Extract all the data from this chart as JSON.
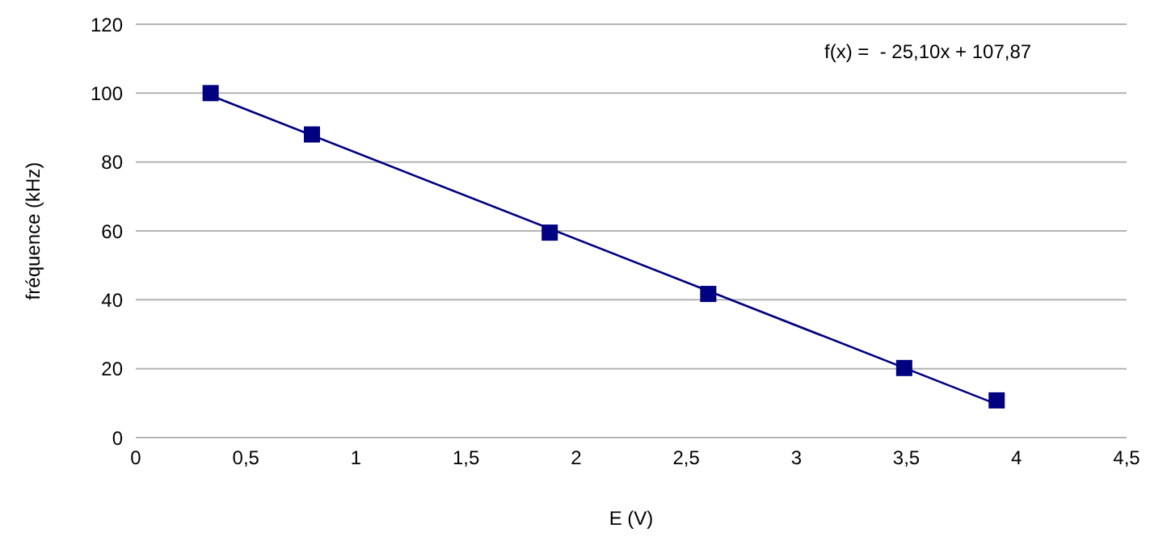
{
  "chart_data": {
    "type": "scatter",
    "xlabel": "E (V)",
    "ylabel": "fréquence (kHz)",
    "annotations": [
      "f(x) =  - 25,10x + 107,87"
    ],
    "xlim": [
      0,
      4.5
    ],
    "xticks": [
      0,
      {
        "value": 0.5,
        "label": "0,5"
      },
      1,
      {
        "value": 1.5,
        "label": "1,5"
      },
      2,
      {
        "value": 2.5,
        "label": "2,5"
      },
      3,
      {
        "value": 3.5,
        "label": "3,5"
      },
      4,
      {
        "value": 4.5,
        "label": "4,5"
      }
    ],
    "ylim": [
      0,
      120
    ],
    "yticks": [
      0,
      20,
      40,
      60,
      80,
      100,
      120
    ],
    "grid": "y",
    "marker": "square",
    "series": [
      {
        "color": "#000080",
        "x": [
          0.34,
          0.8,
          1.88,
          2.6,
          3.49,
          3.91
        ],
        "values": [
          100,
          88,
          59.5,
          41.7,
          20.2,
          10.8
        ]
      },
      {
        "type": "line",
        "marker": "none",
        "color": "#000080",
        "x": [
          0.34,
          3.91
        ],
        "values": [
          99.3,
          9.7
        ]
      }
    ]
  }
}
